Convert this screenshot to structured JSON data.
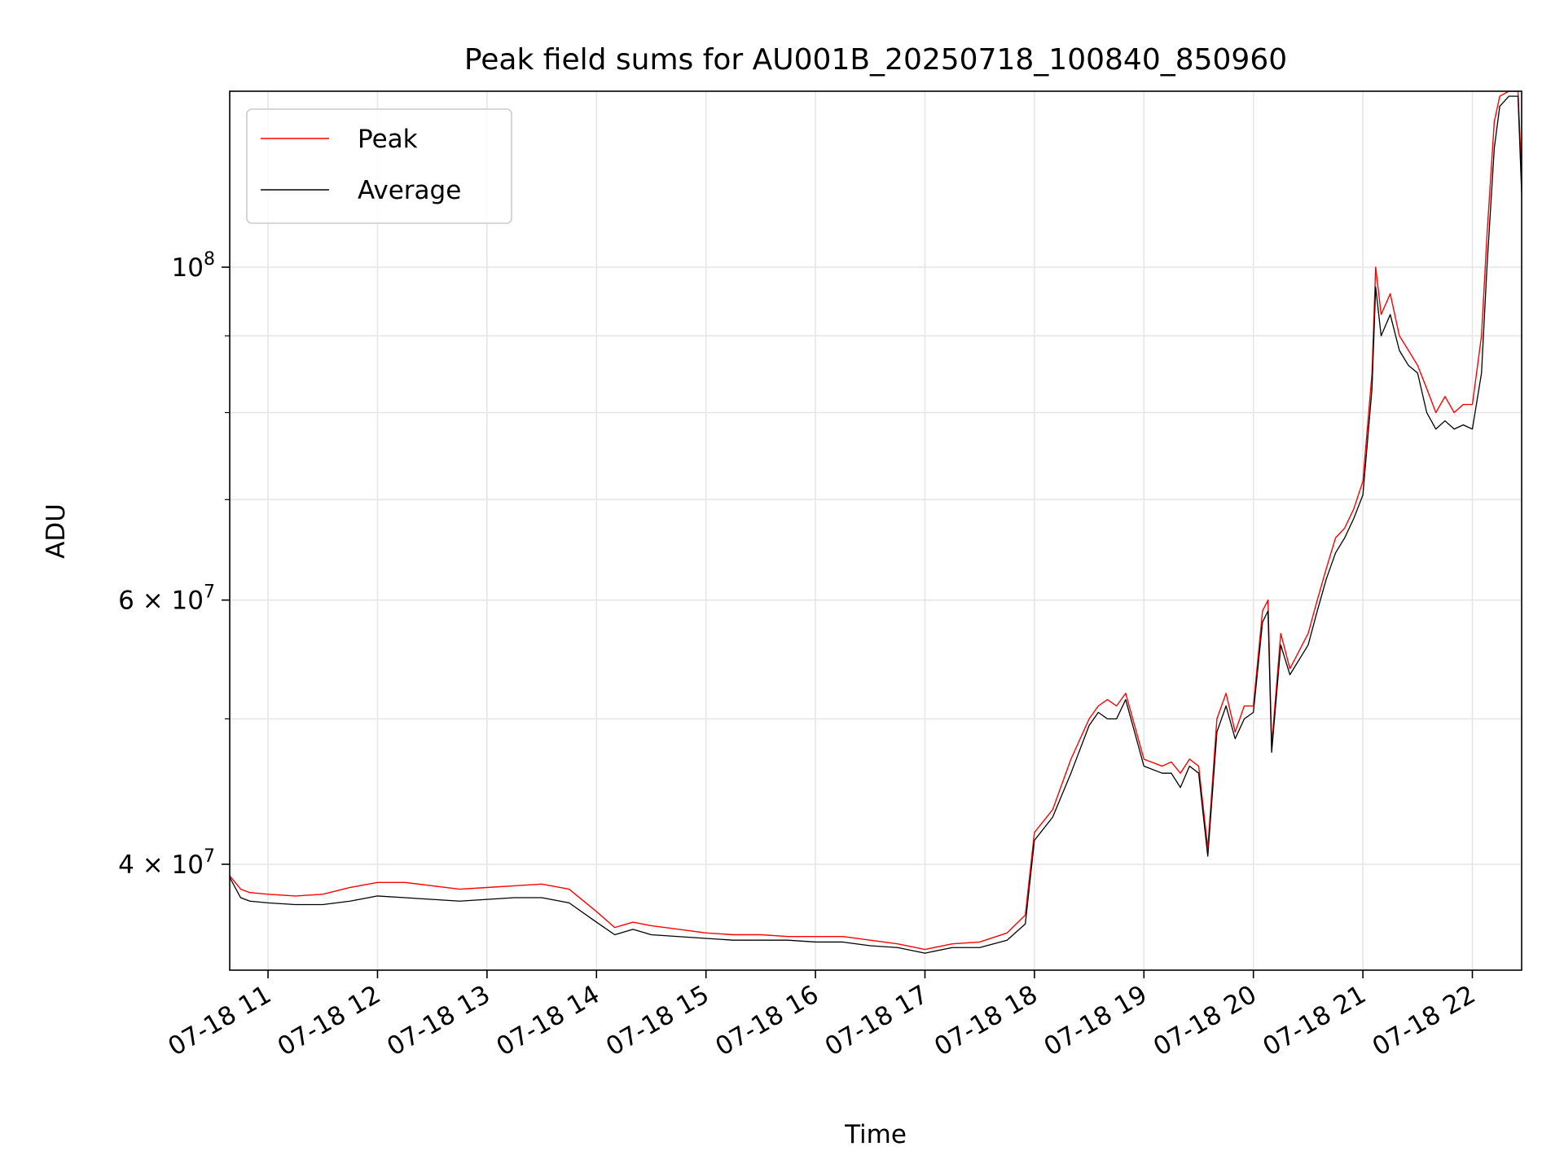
{
  "chart_data": {
    "type": "line",
    "title": "Peak field sums for AU001B_20250718_100840_850960",
    "xlabel": "Time",
    "ylabel": "ADU",
    "y_scale": "log",
    "ylim": [
      34000000,
      131000000
    ],
    "xlim": [
      "2025-07-18 10:39",
      "2025-07-18 22:27"
    ],
    "grid": true,
    "legend_position": "top-left",
    "x_ticks": [
      {
        "t": "2025-07-18 11:00",
        "label": "07-18 11"
      },
      {
        "t": "2025-07-18 12:00",
        "label": "07-18 12"
      },
      {
        "t": "2025-07-18 13:00",
        "label": "07-18 13"
      },
      {
        "t": "2025-07-18 14:00",
        "label": "07-18 14"
      },
      {
        "t": "2025-07-18 15:00",
        "label": "07-18 15"
      },
      {
        "t": "2025-07-18 16:00",
        "label": "07-18 16"
      },
      {
        "t": "2025-07-18 17:00",
        "label": "07-18 17"
      },
      {
        "t": "2025-07-18 18:00",
        "label": "07-18 18"
      },
      {
        "t": "2025-07-18 19:00",
        "label": "07-18 19"
      },
      {
        "t": "2025-07-18 20:00",
        "label": "07-18 20"
      },
      {
        "t": "2025-07-18 21:00",
        "label": "07-18 21"
      },
      {
        "t": "2025-07-18 22:00",
        "label": "07-18 22"
      }
    ],
    "y_major_ticks": [
      {
        "value": 40000000,
        "coef": "4",
        "base": "10",
        "exp": "7"
      },
      {
        "value": 60000000,
        "coef": "6",
        "base": "10",
        "exp": "7"
      },
      {
        "value": 100000000,
        "coef": "",
        "base": "10",
        "exp": "8"
      }
    ],
    "y_minor_ticks": [
      50000000,
      70000000,
      80000000,
      90000000
    ],
    "series": [
      {
        "name": "Peak",
        "color": "#ff0000",
        "x": [
          "2025-07-18 10:39",
          "2025-07-18 10:45",
          "2025-07-18 10:50",
          "2025-07-18 11:00",
          "2025-07-18 11:15",
          "2025-07-18 11:30",
          "2025-07-18 11:45",
          "2025-07-18 12:00",
          "2025-07-18 12:15",
          "2025-07-18 12:30",
          "2025-07-18 12:45",
          "2025-07-18 13:00",
          "2025-07-18 13:15",
          "2025-07-18 13:30",
          "2025-07-18 13:45",
          "2025-07-18 14:00",
          "2025-07-18 14:10",
          "2025-07-18 14:20",
          "2025-07-18 14:30",
          "2025-07-18 14:45",
          "2025-07-18 15:00",
          "2025-07-18 15:15",
          "2025-07-18 15:30",
          "2025-07-18 15:45",
          "2025-07-18 16:00",
          "2025-07-18 16:15",
          "2025-07-18 16:30",
          "2025-07-18 16:45",
          "2025-07-18 17:00",
          "2025-07-18 17:15",
          "2025-07-18 17:30",
          "2025-07-18 17:45",
          "2025-07-18 17:55",
          "2025-07-18 18:00",
          "2025-07-18 18:10",
          "2025-07-18 18:20",
          "2025-07-18 18:30",
          "2025-07-18 18:35",
          "2025-07-18 18:40",
          "2025-07-18 18:45",
          "2025-07-18 18:50",
          "2025-07-18 19:00",
          "2025-07-18 19:10",
          "2025-07-18 19:15",
          "2025-07-18 19:20",
          "2025-07-18 19:25",
          "2025-07-18 19:30",
          "2025-07-18 19:35",
          "2025-07-18 19:40",
          "2025-07-18 19:45",
          "2025-07-18 19:50",
          "2025-07-18 19:55",
          "2025-07-18 20:00",
          "2025-07-18 20:05",
          "2025-07-18 20:08",
          "2025-07-18 20:10",
          "2025-07-18 20:15",
          "2025-07-18 20:20",
          "2025-07-18 20:30",
          "2025-07-18 20:35",
          "2025-07-18 20:40",
          "2025-07-18 20:45",
          "2025-07-18 20:50",
          "2025-07-18 20:55",
          "2025-07-18 21:00",
          "2025-07-18 21:05",
          "2025-07-18 21:07",
          "2025-07-18 21:10",
          "2025-07-18 21:15",
          "2025-07-18 21:20",
          "2025-07-18 21:25",
          "2025-07-18 21:30",
          "2025-07-18 21:35",
          "2025-07-18 21:40",
          "2025-07-18 21:45",
          "2025-07-18 21:50",
          "2025-07-18 21:55",
          "2025-07-18 22:00",
          "2025-07-18 22:05",
          "2025-07-18 22:08",
          "2025-07-18 22:12",
          "2025-07-18 22:15",
          "2025-07-18 22:20",
          "2025-07-18 22:25",
          "2025-07-18 22:27"
        ],
        "y": [
          39300000,
          38500000,
          38300000,
          38200000,
          38100000,
          38200000,
          38600000,
          38900000,
          38900000,
          38700000,
          38500000,
          38600000,
          38700000,
          38800000,
          38500000,
          37200000,
          36300000,
          36600000,
          36400000,
          36200000,
          36000000,
          35900000,
          35900000,
          35800000,
          35800000,
          35800000,
          35600000,
          35400000,
          35100000,
          35400000,
          35500000,
          36000000,
          37000000,
          42000000,
          43500000,
          47000000,
          50000000,
          51000000,
          51500000,
          51000000,
          52000000,
          47000000,
          46500000,
          46800000,
          46000000,
          47000000,
          46500000,
          41000000,
          50000000,
          52000000,
          49000000,
          51000000,
          51000000,
          59000000,
          60000000,
          48000000,
          57000000,
          54000000,
          57000000,
          60000000,
          63000000,
          66000000,
          67000000,
          69000000,
          72000000,
          85000000,
          100000000,
          93000000,
          96000000,
          90000000,
          88000000,
          86000000,
          83000000,
          80000000,
          82000000,
          80000000,
          81000000,
          81000000,
          90000000,
          105000000,
          125000000,
          130000000,
          131000000,
          131000000,
          115000000
        ]
      },
      {
        "name": "Average",
        "color": "#000000",
        "x": [
          "2025-07-18 10:39",
          "2025-07-18 10:45",
          "2025-07-18 10:50",
          "2025-07-18 11:00",
          "2025-07-18 11:15",
          "2025-07-18 11:30",
          "2025-07-18 11:45",
          "2025-07-18 12:00",
          "2025-07-18 12:15",
          "2025-07-18 12:30",
          "2025-07-18 12:45",
          "2025-07-18 13:00",
          "2025-07-18 13:15",
          "2025-07-18 13:30",
          "2025-07-18 13:45",
          "2025-07-18 14:00",
          "2025-07-18 14:10",
          "2025-07-18 14:20",
          "2025-07-18 14:30",
          "2025-07-18 14:45",
          "2025-07-18 15:00",
          "2025-07-18 15:15",
          "2025-07-18 15:30",
          "2025-07-18 15:45",
          "2025-07-18 16:00",
          "2025-07-18 16:15",
          "2025-07-18 16:30",
          "2025-07-18 16:45",
          "2025-07-18 17:00",
          "2025-07-18 17:15",
          "2025-07-18 17:30",
          "2025-07-18 17:45",
          "2025-07-18 17:55",
          "2025-07-18 18:00",
          "2025-07-18 18:10",
          "2025-07-18 18:20",
          "2025-07-18 18:30",
          "2025-07-18 18:35",
          "2025-07-18 18:40",
          "2025-07-18 18:45",
          "2025-07-18 18:50",
          "2025-07-18 19:00",
          "2025-07-18 19:10",
          "2025-07-18 19:15",
          "2025-07-18 19:20",
          "2025-07-18 19:25",
          "2025-07-18 19:30",
          "2025-07-18 19:35",
          "2025-07-18 19:40",
          "2025-07-18 19:45",
          "2025-07-18 19:50",
          "2025-07-18 19:55",
          "2025-07-18 20:00",
          "2025-07-18 20:05",
          "2025-07-18 20:08",
          "2025-07-18 20:10",
          "2025-07-18 20:15",
          "2025-07-18 20:20",
          "2025-07-18 20:30",
          "2025-07-18 20:35",
          "2025-07-18 20:40",
          "2025-07-18 20:45",
          "2025-07-18 20:50",
          "2025-07-18 20:55",
          "2025-07-18 21:00",
          "2025-07-18 21:05",
          "2025-07-18 21:07",
          "2025-07-18 21:10",
          "2025-07-18 21:15",
          "2025-07-18 21:20",
          "2025-07-18 21:25",
          "2025-07-18 21:30",
          "2025-07-18 21:35",
          "2025-07-18 21:40",
          "2025-07-18 21:45",
          "2025-07-18 21:50",
          "2025-07-18 21:55",
          "2025-07-18 22:00",
          "2025-07-18 22:05",
          "2025-07-18 22:08",
          "2025-07-18 22:12",
          "2025-07-18 22:15",
          "2025-07-18 22:20",
          "2025-07-18 22:25",
          "2025-07-18 22:27"
        ],
        "y": [
          39200000,
          38000000,
          37800000,
          37700000,
          37600000,
          37600000,
          37800000,
          38100000,
          38000000,
          37900000,
          37800000,
          37900000,
          38000000,
          38000000,
          37700000,
          36600000,
          35900000,
          36200000,
          35900000,
          35800000,
          35700000,
          35600000,
          35600000,
          35600000,
          35500000,
          35500000,
          35300000,
          35200000,
          34900000,
          35200000,
          35200000,
          35600000,
          36500000,
          41500000,
          43000000,
          46000000,
          49500000,
          50500000,
          50000000,
          50000000,
          51500000,
          46500000,
          46000000,
          46000000,
          45000000,
          46500000,
          46000000,
          40500000,
          49000000,
          51000000,
          48500000,
          50000000,
          50500000,
          58000000,
          59000000,
          47500000,
          56000000,
          53500000,
          56000000,
          59000000,
          62000000,
          64500000,
          66000000,
          68000000,
          70500000,
          83000000,
          97000000,
          90000000,
          93000000,
          88000000,
          86000000,
          85000000,
          80000000,
          78000000,
          79000000,
          78000000,
          78500000,
          78000000,
          85000000,
          100000000,
          120000000,
          128000000,
          130000000,
          130000000,
          112000000
        ]
      }
    ]
  }
}
